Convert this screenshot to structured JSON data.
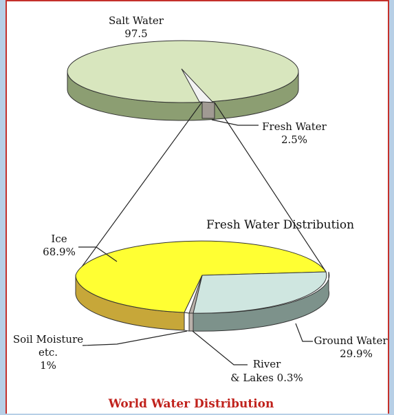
{
  "chart_data": [
    {
      "type": "pie",
      "categories": [
        "Salt Water",
        "Fresh Water"
      ],
      "values": [
        97.5,
        2.5
      ],
      "labels": {
        "salt_name": "Salt Water",
        "salt_value": "97.5",
        "fresh_name": "Fresh Water",
        "fresh_value": "2.5%"
      },
      "colors": {
        "salt_top": "#d8e6be",
        "salt_side": "#8c9e72",
        "fresh_top": "#e8e8e8",
        "fresh_side": "#a19a93"
      }
    },
    {
      "type": "pie",
      "subtitle": "Fresh Water Distribution",
      "categories": [
        "Ice",
        "Ground Water",
        "River & Lakes",
        "Soil Moisture etc."
      ],
      "values": [
        68.9,
        29.9,
        0.3,
        1
      ],
      "labels": {
        "ice_name": "Ice",
        "ice_value": "68.9%",
        "ground_name": "Ground Water",
        "ground_value": "29.9%",
        "river_line1": "River",
        "river_line2": "& Lakes 0.3%",
        "soil_line1": "Soil Moisture",
        "soil_line2": "etc.",
        "soil_line3": "1%"
      },
      "colors": {
        "ice_top": "#ffff33",
        "ice_side": "#c7a739",
        "ground_top": "#cfe6e0",
        "ground_side": "#7d928b",
        "river": "#b9b0aa",
        "soil": "#ffffff"
      }
    }
  ],
  "title": "World Water Distribution"
}
